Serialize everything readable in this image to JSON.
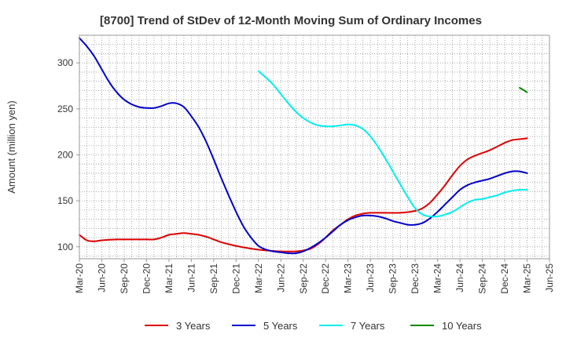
{
  "chart_data": {
    "type": "line",
    "title": "[8700]  Trend of StDev of 12-Month Moving Sum of Ordinary Incomes",
    "ylabel": "Amount (million yen)",
    "xlabel": "",
    "ylim": [
      87,
      330
    ],
    "yticks": [
      100,
      150,
      200,
      250,
      300
    ],
    "xrange": [
      "2020-03",
      "2025-06"
    ],
    "xticks": [
      "Mar-20",
      "Jun-20",
      "Sep-20",
      "Dec-20",
      "Mar-21",
      "Jun-21",
      "Sep-21",
      "Dec-21",
      "Mar-22",
      "Jun-22",
      "Sep-22",
      "Dec-22",
      "Mar-23",
      "Jun-23",
      "Sep-23",
      "Dec-23",
      "Mar-24",
      "Jun-24",
      "Sep-24",
      "Dec-24",
      "Mar-25",
      "Jun-25"
    ],
    "grid": true,
    "legend_position": "bottom",
    "series": [
      {
        "name": "3 Years",
        "color": "#dd0000",
        "points": [
          [
            "2020-03",
            113
          ],
          [
            "2020-04",
            107
          ],
          [
            "2020-05",
            106
          ],
          [
            "2020-06",
            107
          ],
          [
            "2020-08",
            108
          ],
          [
            "2020-10",
            108
          ],
          [
            "2020-12",
            108
          ],
          [
            "2021-01",
            108
          ],
          [
            "2021-02",
            110
          ],
          [
            "2021-03",
            113
          ],
          [
            "2021-04",
            114
          ],
          [
            "2021-05",
            115
          ],
          [
            "2021-06",
            114
          ],
          [
            "2021-07",
            113
          ],
          [
            "2021-08",
            111
          ],
          [
            "2021-09",
            108
          ],
          [
            "2021-10",
            105
          ],
          [
            "2021-12",
            101
          ],
          [
            "2022-02",
            98
          ],
          [
            "2022-04",
            96
          ],
          [
            "2022-06",
            95
          ],
          [
            "2022-08",
            95
          ],
          [
            "2022-09",
            96
          ],
          [
            "2022-10",
            98
          ],
          [
            "2022-11",
            103
          ],
          [
            "2022-12",
            110
          ],
          [
            "2023-01",
            118
          ],
          [
            "2023-02",
            124
          ],
          [
            "2023-03",
            130
          ],
          [
            "2023-04",
            134
          ],
          [
            "2023-05",
            136
          ],
          [
            "2023-06",
            137
          ],
          [
            "2023-08",
            137
          ],
          [
            "2023-10",
            137
          ],
          [
            "2023-12",
            139
          ],
          [
            "2024-01",
            142
          ],
          [
            "2024-02",
            148
          ],
          [
            "2024-03",
            157
          ],
          [
            "2024-04",
            167
          ],
          [
            "2024-05",
            178
          ],
          [
            "2024-06",
            188
          ],
          [
            "2024-07",
            195
          ],
          [
            "2024-08",
            199
          ],
          [
            "2024-09",
            202
          ],
          [
            "2024-10",
            205
          ],
          [
            "2024-11",
            209
          ],
          [
            "2024-12",
            213
          ],
          [
            "2025-01",
            216
          ],
          [
            "2025-02",
            217
          ],
          [
            "2025-03",
            218
          ]
        ]
      },
      {
        "name": "5 Years",
        "color": "#0000cc",
        "points": [
          [
            "2020-03",
            327
          ],
          [
            "2020-04",
            318
          ],
          [
            "2020-05",
            307
          ],
          [
            "2020-06",
            293
          ],
          [
            "2020-07",
            279
          ],
          [
            "2020-08",
            268
          ],
          [
            "2020-09",
            260
          ],
          [
            "2020-10",
            255
          ],
          [
            "2020-11",
            252
          ],
          [
            "2020-12",
            251
          ],
          [
            "2021-01",
            251
          ],
          [
            "2021-02",
            253
          ],
          [
            "2021-03",
            256
          ],
          [
            "2021-04",
            256
          ],
          [
            "2021-05",
            252
          ],
          [
            "2021-06",
            242
          ],
          [
            "2021-07",
            230
          ],
          [
            "2021-08",
            214
          ],
          [
            "2021-09",
            195
          ],
          [
            "2021-10",
            175
          ],
          [
            "2021-11",
            156
          ],
          [
            "2021-12",
            138
          ],
          [
            "2022-01",
            122
          ],
          [
            "2022-02",
            110
          ],
          [
            "2022-03",
            101
          ],
          [
            "2022-04",
            97
          ],
          [
            "2022-05",
            95
          ],
          [
            "2022-06",
            94
          ],
          [
            "2022-07",
            93
          ],
          [
            "2022-08",
            93
          ],
          [
            "2022-09",
            95
          ],
          [
            "2022-10",
            99
          ],
          [
            "2022-11",
            104
          ],
          [
            "2022-12",
            110
          ],
          [
            "2023-01",
            117
          ],
          [
            "2023-02",
            124
          ],
          [
            "2023-03",
            129
          ],
          [
            "2023-04",
            132
          ],
          [
            "2023-05",
            134
          ],
          [
            "2023-06",
            134
          ],
          [
            "2023-07",
            133
          ],
          [
            "2023-08",
            131
          ],
          [
            "2023-09",
            128
          ],
          [
            "2023-10",
            126
          ],
          [
            "2023-11",
            124
          ],
          [
            "2023-12",
            124
          ],
          [
            "2024-01",
            126
          ],
          [
            "2024-02",
            131
          ],
          [
            "2024-03",
            138
          ],
          [
            "2024-04",
            146
          ],
          [
            "2024-05",
            154
          ],
          [
            "2024-06",
            162
          ],
          [
            "2024-07",
            167
          ],
          [
            "2024-08",
            170
          ],
          [
            "2024-09",
            172
          ],
          [
            "2024-10",
            174
          ],
          [
            "2024-11",
            177
          ],
          [
            "2024-12",
            180
          ],
          [
            "2025-01",
            182
          ],
          [
            "2025-02",
            182
          ],
          [
            "2025-03",
            180
          ]
        ]
      },
      {
        "name": "7 Years",
        "color": "#00eeee",
        "points": [
          [
            "2022-03",
            291
          ],
          [
            "2022-04",
            284
          ],
          [
            "2022-05",
            276
          ],
          [
            "2022-06",
            266
          ],
          [
            "2022-07",
            256
          ],
          [
            "2022-08",
            247
          ],
          [
            "2022-09",
            240
          ],
          [
            "2022-10",
            235
          ],
          [
            "2022-11",
            232
          ],
          [
            "2022-12",
            231
          ],
          [
            "2023-01",
            231
          ],
          [
            "2023-02",
            232
          ],
          [
            "2023-03",
            233
          ],
          [
            "2023-04",
            232
          ],
          [
            "2023-05",
            228
          ],
          [
            "2023-06",
            220
          ],
          [
            "2023-07",
            209
          ],
          [
            "2023-08",
            196
          ],
          [
            "2023-09",
            182
          ],
          [
            "2023-10",
            168
          ],
          [
            "2023-11",
            154
          ],
          [
            "2023-12",
            142
          ],
          [
            "2024-01",
            135
          ],
          [
            "2024-02",
            133
          ],
          [
            "2024-03",
            133
          ],
          [
            "2024-04",
            135
          ],
          [
            "2024-05",
            138
          ],
          [
            "2024-06",
            143
          ],
          [
            "2024-07",
            148
          ],
          [
            "2024-08",
            151
          ],
          [
            "2024-09",
            152
          ],
          [
            "2024-10",
            154
          ],
          [
            "2024-11",
            156
          ],
          [
            "2024-12",
            159
          ],
          [
            "2025-01",
            161
          ],
          [
            "2025-02",
            162
          ],
          [
            "2025-03",
            162
          ]
        ]
      },
      {
        "name": "10 Years",
        "color": "#008800",
        "points": [
          [
            "2025-02",
            273
          ],
          [
            "2025-03",
            268
          ]
        ]
      }
    ]
  }
}
